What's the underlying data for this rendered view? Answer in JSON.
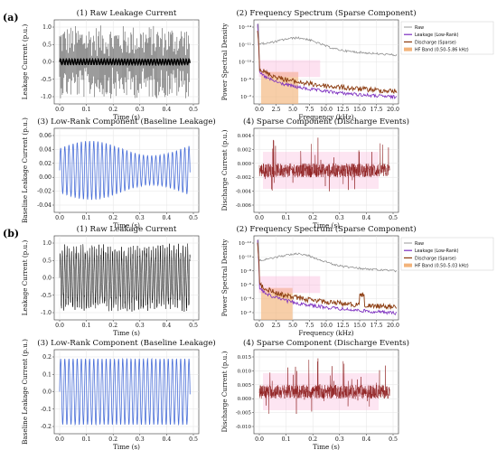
{
  "sections": [
    {
      "label": "(a)",
      "panels": [
        {
          "title": "(1) Raw Leakage Current",
          "xlabel": "Time (s)",
          "ylabel": "Leakage Current (p.u.)",
          "chart_data": {
            "type": "line",
            "x_ticks": [
              "0.0",
              "0.1",
              "0.2",
              "0.3",
              "0.4",
              "0.5"
            ],
            "y_ticks": [
              "-1.0",
              "-0.5",
              "0.0",
              "0.5",
              "1.0"
            ],
            "xlim": [
              -0.03,
              0.52
            ],
            "ylim": [
              -1.15,
              1.15
            ],
            "grid": true,
            "series": [
              {
                "color": "#000000",
                "description_values": {
                  "baseline_amplitude": 0.08,
                  "spike_amplitude_max": 1.0
                }
              }
            ]
          }
        },
        {
          "title": "(2) Frequency Spectrum (Sparse Component)",
          "xlabel": "Frequency (kHz)",
          "ylabel": "Power Spectral Density",
          "chart_data": {
            "type": "line",
            "log_y": true,
            "x_ticks": [
              "0.0",
              "2.5",
              "5.0",
              "7.5",
              "10.0",
              "12.5",
              "15.0",
              "17.5",
              "20.0"
            ],
            "y_ticks": [
              "10⁻²",
              "10⁻⁶",
              "10⁻¹⁰",
              "10⁻¹¹",
              "10⁻¹⁴"
            ],
            "xlim": [
              0,
              20
            ],
            "legend": [
              "Raw",
              "Leakage (Low-Rank)",
              "Discharge (Sparse)",
              "HF Band (0.50–5.86 kHz)"
            ],
            "legend_position": "top-right",
            "hf_band": [
              0.5,
              5.86
            ],
            "series": [
              {
                "name": "Raw",
                "color": "#888888"
              },
              {
                "name": "Leakage (Low-Rank)",
                "color": "#7b2cbf"
              },
              {
                "name": "Discharge (Sparse)",
                "color": "#8b3a0e"
              }
            ]
          }
        },
        {
          "title": "(3) Low-Rank Component (Baseline Leakage)",
          "xlabel": "Time (s)",
          "ylabel": "Baseline Leakage Current (p.u.)",
          "chart_data": {
            "type": "line",
            "x_ticks": [
              "0.0",
              "0.1",
              "0.2",
              "0.3",
              "0.4",
              "0.5"
            ],
            "y_ticks": [
              "-0.04",
              "-0.02",
              "0.00",
              "0.02",
              "0.04",
              "0.06"
            ],
            "xlim": [
              -0.03,
              0.52
            ],
            "ylim": [
              -0.045,
              0.068
            ],
            "series": [
              {
                "color": "#4a6fd8"
              }
            ]
          }
        },
        {
          "title": "(4) Sparse Component (Discharge Events)",
          "xlabel": "Time (s)",
          "ylabel": "Discharge Current (p.u.)",
          "chart_data": {
            "type": "line",
            "x_ticks": [
              "0.0",
              "0.1",
              "0.2",
              "0.3",
              "0.4",
              "0.5"
            ],
            "y_ticks": [
              "-0.006",
              "-0.004",
              "-0.002",
              "0.000",
              "0.002",
              "0.004"
            ],
            "xlim": [
              -0.03,
              0.52
            ],
            "ylim": [
              -0.0075,
              0.0055
            ],
            "series": [
              {
                "color": "#8b1a1a"
              }
            ]
          }
        }
      ]
    },
    {
      "label": "(b)",
      "panels": [
        {
          "title": "(1) Raw Leakage Current",
          "xlabel": "Time (s)",
          "ylabel": "Leakage Current (p.u.)",
          "chart_data": {
            "type": "line",
            "x_ticks": [
              "0.0",
              "0.1",
              "0.2",
              "0.3",
              "0.4",
              "0.5"
            ],
            "y_ticks": [
              "-1.0",
              "-0.5",
              "0.0",
              "0.5",
              "1.0"
            ],
            "xlim": [
              -0.03,
              0.52
            ],
            "ylim": [
              -1.15,
              1.15
            ],
            "series": [
              {
                "color": "#000000"
              }
            ]
          }
        },
        {
          "title": "(2) Frequency Spectrum (Sparse Component)",
          "xlabel": "Frequency (kHz)",
          "ylabel": "Power Spectral Density",
          "chart_data": {
            "type": "line",
            "log_y": true,
            "x_ticks": [
              "0.0",
              "2.5",
              "5.0",
              "7.5",
              "10.0",
              "12.5",
              "15.0",
              "17.5",
              "20.0"
            ],
            "y_ticks": [
              "10⁻²",
              "10⁻⁴",
              "10⁻⁶",
              "10⁻⁸",
              "10⁻¹⁰",
              "10⁻¹²"
            ],
            "xlim": [
              0,
              20
            ],
            "legend": [
              "Raw",
              "Leakage (Low-Rank)",
              "Discharge (Sparse)",
              "HF Band (0.50–5.03 kHz)"
            ],
            "legend_position": "top-right",
            "hf_band": [
              0.5,
              5.03
            ],
            "series": [
              {
                "name": "Raw",
                "color": "#888888"
              },
              {
                "name": "Leakage (Low-Rank)",
                "color": "#7b2cbf"
              },
              {
                "name": "Discharge (Sparse)",
                "color": "#8b3a0e"
              }
            ]
          }
        },
        {
          "title": "(3) Low-Rank Component (Baseline Leakage)",
          "xlabel": "Time (s)",
          "ylabel": "Baseline Leakage Current (p.u.)",
          "chart_data": {
            "type": "line",
            "x_ticks": [
              "0.0",
              "0.1",
              "0.2",
              "0.3",
              "0.4",
              "0.5"
            ],
            "y_ticks": [
              "-0.2",
              "-0.1",
              "0.0",
              "0.1",
              "0.2"
            ],
            "xlim": [
              -0.03,
              0.52
            ],
            "ylim": [
              -0.27,
              0.27
            ],
            "series": [
              {
                "color": "#4a6fd8",
                "amplitude": 0.24
              }
            ]
          }
        },
        {
          "title": "(4) Sparse Component (Discharge Events)",
          "xlabel": "Time (s)",
          "ylabel": "Discharge Current (p.u.)",
          "chart_data": {
            "type": "line",
            "x_ticks": [
              "0.0",
              "0.1",
              "0.2",
              "0.3",
              "0.4",
              "0.5"
            ],
            "y_ticks": [
              "-0.010",
              "-0.005",
              "0.000",
              "0.005",
              "0.010",
              "0.015"
            ],
            "xlim": [
              -0.03,
              0.52
            ],
            "ylim": [
              -0.0125,
              0.018
            ],
            "series": [
              {
                "color": "#8b1a1a"
              }
            ]
          }
        }
      ]
    }
  ]
}
